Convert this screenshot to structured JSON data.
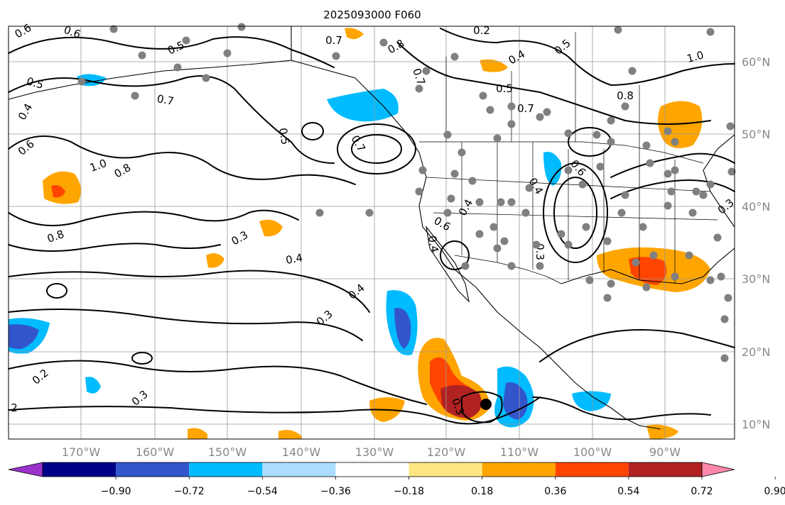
{
  "title": "2025093000 F060",
  "axes": {
    "lon_labels": [
      "170°W",
      "160°W",
      "150°W",
      "140°W",
      "130°W",
      "120°W",
      "110°W",
      "100°W",
      "90°W"
    ],
    "lat_labels": [
      "60°N",
      "50°N",
      "40°N",
      "30°N",
      "20°N",
      "10°N"
    ],
    "grid": true
  },
  "colorbar": {
    "ticks": [
      "−0.90",
      "−0.72",
      "−0.54",
      "−0.36",
      "−0.18",
      "0.18",
      "0.36",
      "0.54",
      "0.72",
      "0.90"
    ],
    "colors": [
      "#9933cc",
      "#000088",
      "#3355cc",
      "#00bbff",
      "#aaddff",
      "#ffffff",
      "#ffe680",
      "#ffa500",
      "#ff4500",
      "#b22222",
      "#ff88aa"
    ],
    "extend": "both"
  },
  "contour_labels": [
    "0.6",
    "0.6",
    "0.5",
    "0.5",
    "0.4",
    "0.6",
    "0.7",
    "1.0",
    "0.8",
    "0.8",
    "0.5",
    "0.7",
    "0.7",
    "0.8",
    "0.7",
    "0.2",
    "0.4",
    "0.5",
    "1.0",
    "0.7",
    "0.8",
    "0.6",
    "0.4",
    "0.6",
    "0.4",
    "0.3",
    "0.5",
    "0.3",
    "0.4",
    "0.4",
    "0.3",
    "0.2",
    "0.3",
    "2",
    "0.4",
    "0.3",
    "0.3"
  ],
  "shading": {
    "colors": {
      "orange": "#ffa500",
      "darkred": "#b22222",
      "red": "#ff4500",
      "cyan": "#00bbff",
      "blue": "#3355cc",
      "lightorange": "#ffe680"
    }
  },
  "markers": {
    "station_color": "#808080",
    "storm_center_color": "#000000"
  }
}
